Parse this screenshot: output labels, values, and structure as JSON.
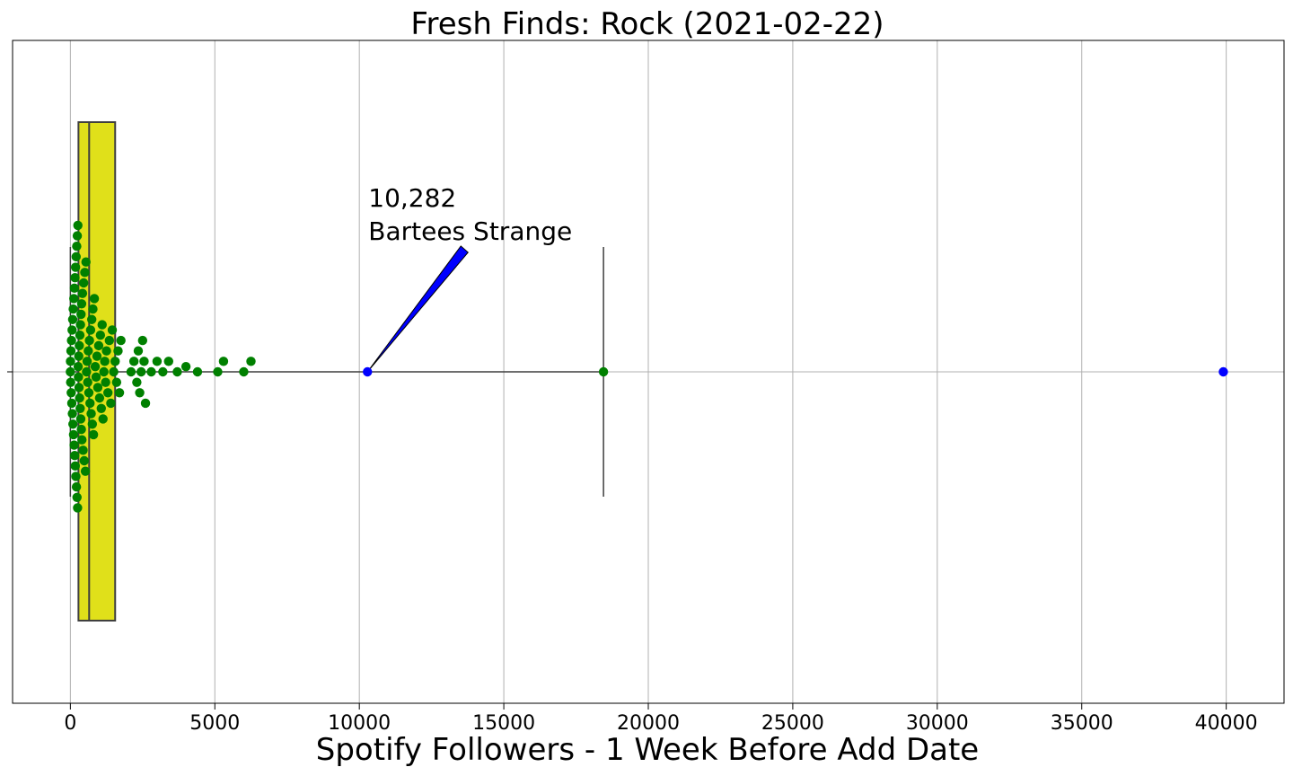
{
  "chart_data": {
    "type": "box",
    "title": "Fresh Finds: Rock (2021-02-22)",
    "xlabel": "Spotify Followers - 1 Week Before Add Date",
    "ylabel": "",
    "xlim": [
      -2000,
      42000
    ],
    "xticks": [
      0,
      5000,
      10000,
      15000,
      20000,
      25000,
      30000,
      35000,
      40000
    ],
    "grid": true,
    "box": {
      "whisker_low": 0,
      "q1": 280,
      "median": 650,
      "q3": 1550,
      "whisker_high": 18450,
      "fill_color": "#e0e01a",
      "edge_color": "#3f3f3f"
    },
    "swarm_color": "#008000",
    "highlight_color": "#0000ff",
    "swarm_points": [
      0,
      5,
      10,
      20,
      30,
      40,
      50,
      60,
      70,
      80,
      90,
      100,
      110,
      120,
      130,
      140,
      150,
      160,
      170,
      180,
      190,
      200,
      210,
      220,
      230,
      240,
      250,
      260,
      270,
      280,
      290,
      300,
      310,
      320,
      330,
      340,
      350,
      360,
      370,
      380,
      390,
      400,
      420,
      440,
      460,
      480,
      500,
      520,
      540,
      560,
      580,
      600,
      620,
      640,
      660,
      680,
      700,
      720,
      740,
      760,
      780,
      800,
      830,
      860,
      890,
      920,
      950,
      980,
      1010,
      1040,
      1070,
      1100,
      1130,
      1160,
      1190,
      1220,
      1250,
      1300,
      1350,
      1400,
      1450,
      1500,
      1550,
      1600,
      1650,
      1700,
      1750,
      2100,
      2200,
      2300,
      2350,
      2400,
      2450,
      2500,
      2550,
      2600,
      2800,
      3000,
      3200,
      3400,
      3700,
      4000,
      4400,
      5100,
      5300,
      6000,
      6250,
      18450
    ],
    "highlight_points": [
      {
        "x": 10282
      },
      {
        "x": 39900
      }
    ],
    "annotation": {
      "x": 10282,
      "value_text": "10,282",
      "name_text": "Bartees Strange"
    }
  }
}
